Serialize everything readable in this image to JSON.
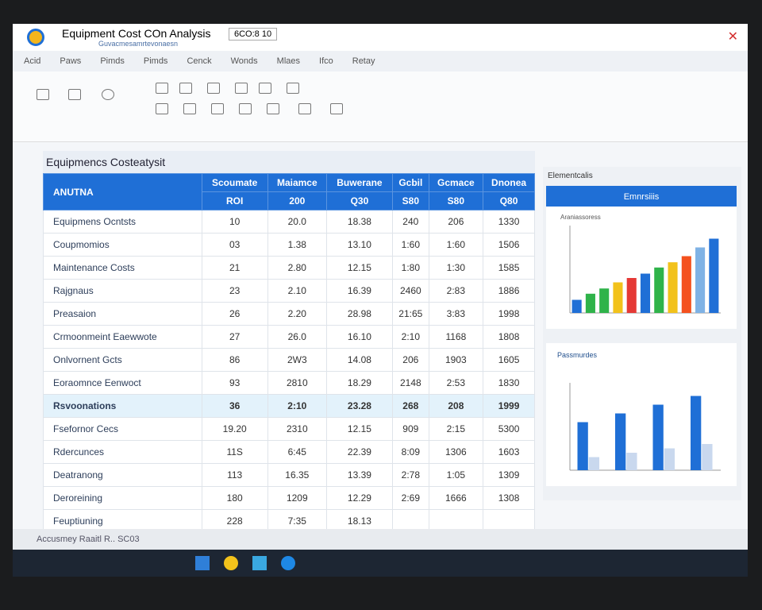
{
  "window": {
    "title": "Equipment Cost COn   Analysis",
    "subtitle": "Guvacmesamrtevonaesn",
    "field": "6CO:8  10"
  },
  "tabs": [
    "Acid",
    "Paws",
    "Pimds",
    "Pimds",
    "Cenck",
    "Wonds",
    "Mlaes",
    "Ifco",
    "Retay"
  ],
  "sheet": {
    "title": "Equipmencs Costeatysit",
    "corner": "ANUTNA",
    "columns": [
      "Scoumate",
      "Maiamce",
      "Buwerane",
      "Gcbil",
      "Gcmace",
      "Dnonea"
    ],
    "units": [
      "ROI",
      "200",
      "Q30",
      "S80",
      "S80",
      "Q80"
    ],
    "rows": [
      [
        "Equipmens Ocntsts",
        "10",
        "20.0",
        "18.38",
        "240",
        "206",
        "1330"
      ],
      [
        "Coupmomios",
        "03",
        "1.38",
        "13.10",
        "1:60",
        "1:60",
        "1506"
      ],
      [
        "Maintenance Costs",
        "21",
        "2.80",
        "12.15",
        "1:80",
        "1:30",
        "1585"
      ],
      [
        "Rajgnaus",
        "23",
        "2.10",
        "16.39",
        "2460",
        "2:83",
        "1886"
      ],
      [
        "Preasaion",
        "26",
        "2.20",
        "28.98",
        "21:65",
        "3:83",
        "1998"
      ],
      [
        "Crmoonmeint Eaewwote",
        "27",
        "26.0",
        "16.10",
        "2:10",
        "1168",
        "1808"
      ],
      [
        "Onlvornent Gcts",
        "86",
        "2W3",
        "14.08",
        "206",
        "1903",
        "1605"
      ],
      [
        "Eoraomnce Eenwoct",
        "93",
        "2810",
        "18.29",
        "2148",
        "2:53",
        "1830"
      ],
      [
        "Rsvoonations",
        "36",
        "2:10",
        "23.28",
        "268",
        "208",
        "1999"
      ],
      [
        "Fsefornor Cecs",
        "19.20",
        "2310",
        "12.15",
        "909",
        "2:15",
        "5300"
      ],
      [
        "Rdercunces",
        "11S",
        "6:45",
        "22.39",
        "8:09",
        "1306",
        "1603"
      ],
      [
        "Deatranong",
        "113",
        "16.35",
        "13.39",
        "2:78",
        "1:05",
        "1309"
      ],
      [
        "Deroreining",
        "180",
        "1209",
        "12.29",
        "2:69",
        "1666",
        "1308"
      ],
      [
        "Feuptiuning",
        "228",
        "7:35",
        "18.13",
        "",
        "",
        ""
      ]
    ]
  },
  "panel": {
    "title": "Elementcalis"
  },
  "status": "Accusmey Raaitl  R..  SC03",
  "chart_data": [
    {
      "type": "bar",
      "title": "Emnrsiiis",
      "subtitle": "Araniassoress",
      "ylim": [
        0,
        100
      ],
      "values": [
        15,
        22,
        28,
        35,
        40,
        45,
        52,
        58,
        65,
        75,
        85
      ],
      "colors": [
        "#1f6fd6",
        "#2fb34a",
        "#2fb34a",
        "#f2c21b",
        "#e53935",
        "#1f6fd6",
        "#2fb34a",
        "#f2c21b",
        "#f4511e",
        "#7fb2e5",
        "#1f6fd6"
      ]
    },
    {
      "type": "bar",
      "title": "Passmurdes",
      "ylim": [
        0,
        100
      ],
      "series": [
        {
          "name": null,
          "color": "#1f6fd6",
          "values": [
            55,
            65,
            75,
            85
          ]
        },
        {
          "name": null,
          "color": "#c9d8ee",
          "values": [
            15,
            20,
            25,
            30
          ]
        }
      ]
    }
  ]
}
